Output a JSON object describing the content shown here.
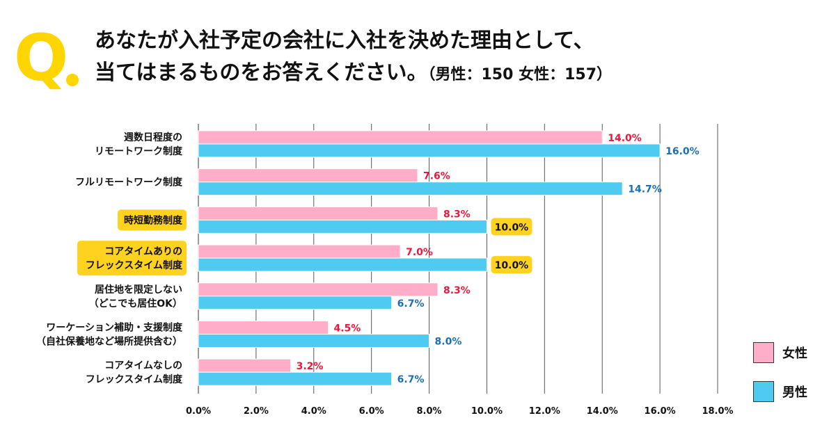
{
  "header": {
    "q_mark": "Q",
    "title_line1": "あなたが入社予定の会社に入社を決めた理由として、",
    "title_line2": "当てはまるものをお答えください。",
    "title_sub": "（男性：150 女性：157）"
  },
  "colors": {
    "female": "#FFADC9",
    "male": "#4FCBF2",
    "female_label": "#E8193C",
    "male_label": "#1A6FB3",
    "highlight": "#FFD21F",
    "grid": "#555555",
    "q_mark": "#FFD500"
  },
  "legend": [
    {
      "name": "女性",
      "series_key": "female"
    },
    {
      "name": "男性",
      "series_key": "male"
    }
  ],
  "chart_data": {
    "type": "bar",
    "orientation": "horizontal",
    "title": "あなたが入社予定の会社に入社を決めた理由として、当てはまるものをお答えください。（男性：150 女性：157）",
    "xlabel": "",
    "ylabel": "",
    "xlim": [
      0,
      18
    ],
    "grid": true,
    "legend_position": "bottom-right",
    "x_ticks": [
      "0.0%",
      "2.0%",
      "4.0%",
      "6.0%",
      "8.0%",
      "10.0%",
      "12.0%",
      "14.0%",
      "16.0%",
      "18.0%"
    ],
    "categories": [
      {
        "lines": [
          "週数日程度の",
          "リモートワーク制度"
        ],
        "highlight": false
      },
      {
        "lines": [
          "フルリモートワーク制度"
        ],
        "highlight": false
      },
      {
        "lines": [
          "時短勤務制度"
        ],
        "highlight": true
      },
      {
        "lines": [
          "コアタイムありの",
          "フレックスタイム制度"
        ],
        "highlight": true
      },
      {
        "lines": [
          "居住地を限定しない",
          "（どこでも居住OK）"
        ],
        "highlight": false
      },
      {
        "lines": [
          "ワーケーション補助・支援制度",
          "（自社保養地など場所提供含む）"
        ],
        "highlight": false
      },
      {
        "lines": [
          "コアタイムなしの",
          "フレックスタイム制度"
        ],
        "highlight": false
      }
    ],
    "series": [
      {
        "name": "女性",
        "key": "female",
        "values": [
          14.0,
          7.6,
          8.3,
          7.0,
          8.3,
          4.5,
          3.2
        ],
        "labels": [
          "14.0%",
          "7.6%",
          "8.3%",
          "7.0%",
          "8.3%",
          "4.5%",
          "3.2%"
        ],
        "label_highlight": [
          false,
          false,
          false,
          false,
          false,
          false,
          false
        ]
      },
      {
        "name": "男性",
        "key": "male",
        "values": [
          16.0,
          14.7,
          10.0,
          10.0,
          6.7,
          8.0,
          6.7
        ],
        "labels": [
          "16.0%",
          "14.7%",
          "10.0%",
          "10.0%",
          "6.7%",
          "8.0%",
          "6.7%"
        ],
        "label_highlight": [
          false,
          false,
          true,
          true,
          false,
          false,
          false
        ]
      }
    ]
  }
}
